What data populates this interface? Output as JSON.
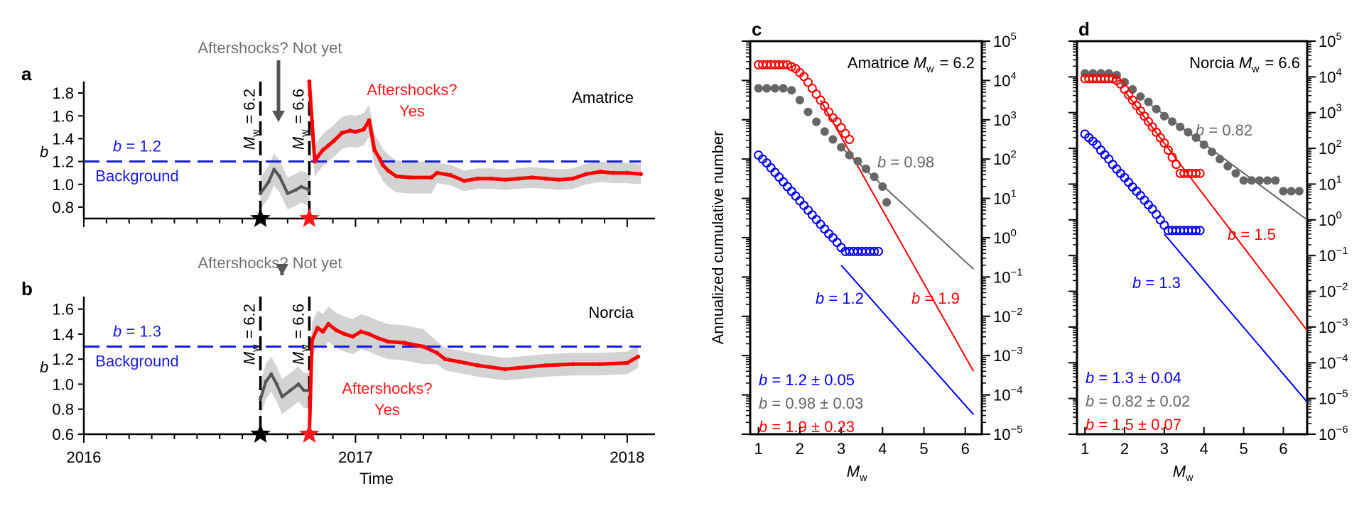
{
  "chart_data": [
    {
      "type": "line",
      "panel": "a",
      "site": "Amatrice",
      "ylabel": "b",
      "ylim": [
        0.7,
        1.9
      ],
      "yticks": [
        "0.8",
        "1.0",
        "1.2",
        "1.4",
        "1.6",
        "1.8"
      ],
      "xlim": [
        2016.0,
        2018.05
      ],
      "background_b": 1.2,
      "background_label": "b = 1.2",
      "background_text": "Background",
      "top_annotation": "Aftershocks? Not yet",
      "aftershock_annotation": [
        "Aftershocks?",
        "Yes"
      ],
      "mainshocks": [
        {
          "label": "Mw = 6.2",
          "time": 2016.65,
          "color": "#000000"
        },
        {
          "label": "Mw = 6.6",
          "time": 2016.83,
          "color": "#ff0000"
        }
      ],
      "series": [
        {
          "color": "#555555",
          "x": [
            2016.65,
            2016.68,
            2016.7,
            2016.72,
            2016.75,
            2016.78,
            2016.8,
            2016.83
          ],
          "y": [
            0.92,
            1.02,
            1.13,
            1.07,
            0.92,
            0.95,
            0.98,
            0.95
          ]
        },
        {
          "color": "#ff0000",
          "x": [
            2016.83,
            2016.84,
            2016.85,
            2016.86,
            2016.88,
            2016.9,
            2016.92,
            2016.95,
            2016.98,
            2017.0,
            2017.03,
            2017.05,
            2017.07,
            2017.09,
            2017.1,
            2017.12,
            2017.15,
            2017.2,
            2017.28,
            2017.3,
            2017.35,
            2017.4,
            2017.45,
            2017.5,
            2017.55,
            2017.6,
            2017.65,
            2017.7,
            2017.75,
            2017.8,
            2017.85,
            2017.9,
            2017.95,
            2018.0,
            2018.05
          ],
          "y": [
            1.9,
            1.55,
            1.2,
            1.24,
            1.3,
            1.34,
            1.38,
            1.45,
            1.47,
            1.46,
            1.48,
            1.56,
            1.3,
            1.22,
            1.17,
            1.12,
            1.07,
            1.06,
            1.06,
            1.1,
            1.08,
            1.03,
            1.05,
            1.05,
            1.04,
            1.05,
            1.06,
            1.05,
            1.04,
            1.05,
            1.09,
            1.11,
            1.1,
            1.1,
            1.09
          ]
        }
      ]
    },
    {
      "type": "line",
      "panel": "b",
      "site": "Norcia",
      "ylabel": "b",
      "ylim": [
        0.6,
        1.7
      ],
      "yticks": [
        "0.6",
        "0.8",
        "1.0",
        "1.2",
        "1.4",
        "1.6"
      ],
      "xlim": [
        2016.0,
        2018.05
      ],
      "xticks": [
        "2016",
        "2017",
        "2018"
      ],
      "xlabel": "Time",
      "background_b": 1.3,
      "background_label": "b = 1.3",
      "background_text": "Background",
      "top_annotation": "Aftershocks? Not yet",
      "aftershock_annotation": [
        "Aftershocks?",
        "Yes"
      ],
      "mainshocks": [
        {
          "label": "Mw = 6.2",
          "time": 2016.65,
          "color": "#000000"
        },
        {
          "label": "Mw = 6.6",
          "time": 2016.83,
          "color": "#ff0000"
        }
      ],
      "series": [
        {
          "color": "#555555",
          "x": [
            2016.65,
            2016.67,
            2016.69,
            2016.71,
            2016.73,
            2016.76,
            2016.79,
            2016.81,
            2016.83
          ],
          "y": [
            0.88,
            1.02,
            1.08,
            1.0,
            0.9,
            0.95,
            1.0,
            0.95,
            0.95
          ]
        },
        {
          "color": "#ff0000",
          "x": [
            2016.83,
            2016.84,
            2016.86,
            2016.88,
            2016.9,
            2016.93,
            2016.96,
            2016.99,
            2017.02,
            2017.05,
            2017.08,
            2017.12,
            2017.18,
            2017.25,
            2017.3,
            2017.33,
            2017.38,
            2017.45,
            2017.55,
            2017.6,
            2017.7,
            2017.8,
            2017.9,
            2018.0,
            2018.04
          ],
          "y": [
            0.6,
            1.35,
            1.45,
            1.42,
            1.48,
            1.43,
            1.4,
            1.38,
            1.42,
            1.4,
            1.37,
            1.34,
            1.33,
            1.3,
            1.25,
            1.2,
            1.18,
            1.15,
            1.12,
            1.13,
            1.15,
            1.16,
            1.16,
            1.17,
            1.22
          ]
        }
      ]
    },
    {
      "type": "scatter",
      "panel": "c",
      "title": "Amatrice Mw = 6.2",
      "xlabel": "Mw",
      "ylabel": "Annualized cumulative number",
      "xlim": [
        0.8,
        6.4
      ],
      "xticks": [
        "1",
        "2",
        "3",
        "4",
        "5",
        "6"
      ],
      "ylim_log10": [
        -5,
        5
      ],
      "yticks": [
        "10^5",
        "10^4",
        "10^3",
        "10^2",
        "10^1",
        "10^0",
        "10^-1",
        "10^-2",
        "10^-3",
        "10^-4",
        "10^-5"
      ],
      "fit_labels": [
        {
          "text": "b = 0.98",
          "color": "#666666"
        },
        {
          "text": "b = 1.2",
          "color": "#0000ff"
        },
        {
          "text": "b = 1.9",
          "color": "#ff0000"
        }
      ],
      "legend": [
        {
          "text": "b = 1.2 ± 0.05",
          "color": "#0000ff"
        },
        {
          "text": "b = 0.98 ± 0.03",
          "color": "#666666"
        },
        {
          "text": "b = 1.9 ± 0.23",
          "color": "#ff0000"
        }
      ],
      "series": [
        {
          "color": "#0000ff",
          "b": 1.2,
          "marker": "open",
          "x": [
            1.0,
            1.1,
            1.2,
            1.3,
            1.4,
            1.5,
            1.6,
            1.7,
            1.8,
            1.9,
            2.0,
            2.1,
            2.2,
            2.3,
            2.4,
            2.5,
            2.6,
            2.7,
            2.8,
            2.9,
            3.0,
            3.1,
            3.2,
            3.3,
            3.4,
            3.5,
            3.6,
            3.7,
            3.8,
            3.9
          ],
          "y_log10": [
            2.1,
            2.0,
            1.9,
            1.78,
            1.66,
            1.54,
            1.42,
            1.3,
            1.18,
            1.06,
            0.94,
            0.82,
            0.7,
            0.58,
            0.46,
            0.34,
            0.22,
            0.1,
            0.0,
            -0.12,
            -0.25,
            -0.35,
            -0.35,
            -0.35,
            -0.35,
            -0.35,
            -0.35,
            -0.35,
            -0.35,
            -0.35
          ],
          "fit": {
            "x": [
              3.0,
              6.2
            ],
            "y_log10": [
              -0.7,
              -4.5
            ]
          }
        },
        {
          "color": "#666666",
          "b": 0.98,
          "marker": "filled",
          "x": [
            1.0,
            1.2,
            1.4,
            1.6,
            1.8,
            2.0,
            2.2,
            2.4,
            2.6,
            2.8,
            3.0,
            3.2,
            3.4,
            3.6,
            3.8,
            4.0,
            4.1
          ],
          "y_log10": [
            3.8,
            3.8,
            3.8,
            3.8,
            3.75,
            3.5,
            3.2,
            2.95,
            2.7,
            2.5,
            2.3,
            2.1,
            1.95,
            1.75,
            1.55,
            1.3,
            0.9
          ],
          "fit": {
            "x": [
              3.0,
              6.2
            ],
            "y_log10": [
              2.3,
              -0.8
            ]
          }
        },
        {
          "color": "#ff0000",
          "b": 1.9,
          "marker": "open",
          "x": [
            1.0,
            1.1,
            1.2,
            1.3,
            1.4,
            1.5,
            1.6,
            1.7,
            1.8,
            1.9,
            2.0,
            2.1,
            2.2,
            2.3,
            2.4,
            2.5,
            2.6,
            2.7,
            2.8,
            2.9,
            3.0,
            3.1,
            3.2
          ],
          "y_log10": [
            4.4,
            4.4,
            4.4,
            4.4,
            4.4,
            4.4,
            4.4,
            4.4,
            4.35,
            4.3,
            4.2,
            4.1,
            3.95,
            3.8,
            3.65,
            3.5,
            3.35,
            3.2,
            3.05,
            2.95,
            2.8,
            2.65,
            2.5
          ],
          "fit": {
            "x": [
              2.5,
              6.2
            ],
            "y_log10": [
              3.5,
              -3.4
            ]
          }
        }
      ]
    },
    {
      "type": "scatter",
      "panel": "d",
      "title": "Norcia Mw = 6.6",
      "xlabel": "Mw",
      "xlim": [
        0.8,
        6.6
      ],
      "xticks": [
        "1",
        "2",
        "3",
        "4",
        "5",
        "6"
      ],
      "ylim_log10": [
        -6,
        5
      ],
      "yticks": [
        "10^5",
        "10^4",
        "10^3",
        "10^2",
        "10^1",
        "10^0",
        "10^-1",
        "10^-2",
        "10^-3",
        "10^-4",
        "10^-5",
        "10^-6"
      ],
      "fit_labels": [
        {
          "text": "b = 0.82",
          "color": "#666666"
        },
        {
          "text": "b = 1.5",
          "color": "#ff0000"
        },
        {
          "text": "b = 1.3",
          "color": "#0000ff"
        }
      ],
      "legend": [
        {
          "text": "b = 1.3 ± 0.04",
          "color": "#0000ff"
        },
        {
          "text": "b = 0.82 ± 0.02",
          "color": "#666666"
        },
        {
          "text": "b = 1.5 ± 0.07",
          "color": "#ff0000"
        }
      ],
      "series": [
        {
          "color": "#0000ff",
          "b": 1.3,
          "marker": "open",
          "x": [
            1.0,
            1.1,
            1.2,
            1.3,
            1.4,
            1.5,
            1.6,
            1.7,
            1.8,
            1.9,
            2.0,
            2.1,
            2.2,
            2.3,
            2.4,
            2.5,
            2.6,
            2.7,
            2.8,
            2.9,
            3.0,
            3.1,
            3.2,
            3.3,
            3.4,
            3.5,
            3.6,
            3.7,
            3.8,
            3.9
          ],
          "y_log10": [
            2.4,
            2.3,
            2.2,
            2.1,
            1.95,
            1.82,
            1.7,
            1.55,
            1.42,
            1.3,
            1.18,
            1.05,
            0.92,
            0.8,
            0.68,
            0.55,
            0.42,
            0.3,
            0.15,
            0.0,
            -0.15,
            -0.3,
            -0.3,
            -0.3,
            -0.3,
            -0.3,
            -0.3,
            -0.3,
            -0.3,
            -0.3
          ],
          "fit": {
            "x": [
              3.0,
              6.6
            ],
            "y_log10": [
              -0.4,
              -5.1
            ]
          }
        },
        {
          "color": "#666666",
          "b": 0.82,
          "marker": "filled",
          "x": [
            1.0,
            1.2,
            1.4,
            1.6,
            1.8,
            2.0,
            2.2,
            2.4,
            2.6,
            2.8,
            3.0,
            3.2,
            3.4,
            3.6,
            3.8,
            4.0,
            4.2,
            4.4,
            4.6,
            4.8,
            5.0,
            5.2,
            5.4,
            5.6,
            5.8,
            6.0,
            6.2,
            6.4
          ],
          "y_log10": [
            4.1,
            4.1,
            4.1,
            4.1,
            4.05,
            3.85,
            3.65,
            3.45,
            3.3,
            3.1,
            2.9,
            2.75,
            2.6,
            2.45,
            2.3,
            2.1,
            1.9,
            1.7,
            1.5,
            1.3,
            1.1,
            1.1,
            1.1,
            1.1,
            1.1,
            0.8,
            0.8,
            0.8
          ],
          "fit": {
            "x": [
              2.5,
              6.6
            ],
            "y_log10": [
              3.35,
              0.0
            ]
          }
        },
        {
          "color": "#ff0000",
          "b": 1.5,
          "marker": "open",
          "x": [
            1.0,
            1.1,
            1.2,
            1.3,
            1.4,
            1.5,
            1.6,
            1.7,
            1.8,
            1.9,
            2.0,
            2.1,
            2.2,
            2.3,
            2.4,
            2.5,
            2.6,
            2.7,
            2.8,
            2.9,
            3.0,
            3.1,
            3.2,
            3.3,
            3.4,
            3.5,
            3.6,
            3.7,
            3.8,
            3.9
          ],
          "y_log10": [
            3.95,
            3.95,
            3.95,
            3.95,
            3.95,
            3.95,
            3.95,
            3.95,
            3.9,
            3.8,
            3.65,
            3.5,
            3.35,
            3.2,
            3.05,
            2.9,
            2.75,
            2.6,
            2.45,
            2.3,
            2.15,
            1.95,
            1.75,
            1.55,
            1.3,
            1.3,
            1.3,
            1.3,
            1.3,
            1.3
          ],
          "fit": {
            "x": [
              2.0,
              6.6
            ],
            "y_log10": [
              3.6,
              -3.1
            ]
          }
        }
      ]
    }
  ]
}
